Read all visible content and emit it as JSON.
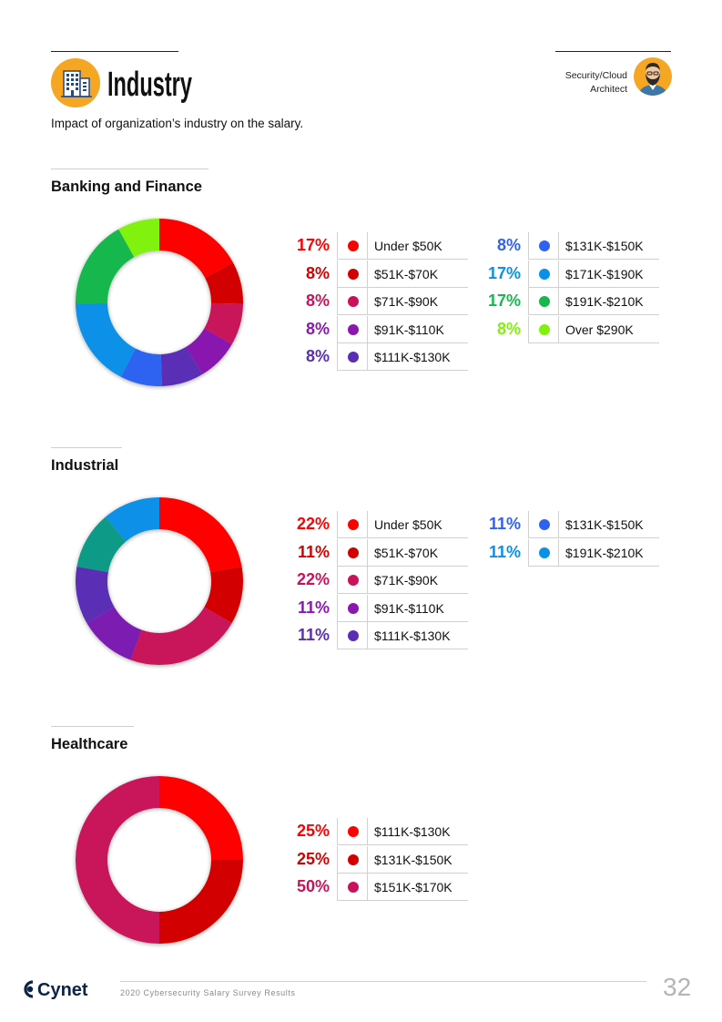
{
  "header": {
    "title": "Industry",
    "subtitle": "Impact of organization’s industry on the salary.",
    "role_line1": "Security/Cloud",
    "role_line2": "Architect",
    "icon": "office-building-icon",
    "avatar_icon": "bearded-person-avatar-icon",
    "accent_color": "#F5A623"
  },
  "footer": {
    "brand": "Cynet",
    "text": "2020 Cybersecurity Salary Survey Results",
    "page_number": "32"
  },
  "chart_data": [
    {
      "type": "pie",
      "title": "Banking and Finance",
      "categories": [
        "Under $50K",
        "$51K-$70K",
        "$71K-$90K",
        "$91K-$110K",
        "$111K-$130K",
        "$131K-$150K",
        "$171K-$190K",
        "$191K-$210K",
        "Over $290K"
      ],
      "values": [
        17,
        8,
        8,
        8,
        8,
        8,
        17,
        17,
        8
      ],
      "labels": [
        "17%",
        "8%",
        "8%",
        "8%",
        "8%",
        "8%",
        "17%",
        "17%",
        "8%"
      ],
      "colors": [
        "#FF0000",
        "#D30000",
        "#C9125A",
        "#8A18B0",
        "#5A2DB5",
        "#2F62F0",
        "#0A90E8",
        "#16B84E",
        "#80F20A"
      ]
    },
    {
      "type": "pie",
      "title": "Industrial",
      "categories": [
        "Under $50K",
        "$51K-$70K",
        "$71K-$90K",
        "$91K-$110K",
        "$111K-$130K",
        "$131K-$150K",
        "$191K-$210K"
      ],
      "values": [
        22,
        11,
        22,
        11,
        11,
        11,
        11
      ],
      "labels": [
        "22%",
        "11%",
        "22%",
        "11%",
        "11%",
        "11%",
        "11%"
      ],
      "colors": [
        "#FF0000",
        "#D30000",
        "#C9125A",
        "#8A18B0",
        "#5A2DB5",
        "#2F62F0",
        "#0A90E8"
      ],
      "chart_colors": [
        "#FF0000",
        "#D30000",
        "#C9125A",
        "#7C1EB0",
        "#5A2DB5",
        "#0E9A86",
        "#0A90E8"
      ]
    },
    {
      "type": "pie",
      "title": "Healthcare",
      "categories": [
        "$111K-$130K",
        "$131K-$150K",
        "$151K-$170K"
      ],
      "values": [
        25,
        25,
        50
      ],
      "labels": [
        "25%",
        "25%",
        "50%"
      ],
      "colors": [
        "#FF0000",
        "#D30000",
        "#C9125A"
      ]
    }
  ]
}
